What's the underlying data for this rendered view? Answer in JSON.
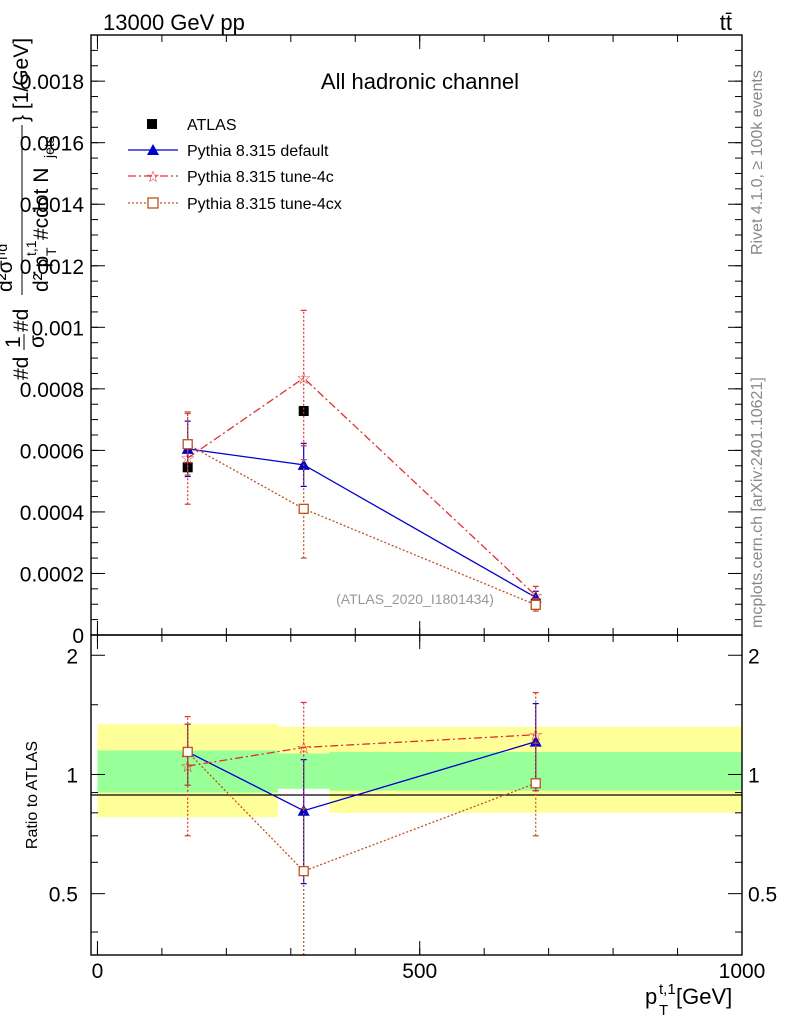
{
  "header": {
    "energy_label": "13000 GeV pp",
    "process": "tt̄"
  },
  "side_labels": {
    "rivet": "Rivet 4.1.0, ≥ 100k events",
    "source": "mcplots.cern.ch [arXiv:2401.10621]"
  },
  "colors": {
    "data": "#000000",
    "default": "#0000cc",
    "tune4c": "#e03030",
    "tune4cx": "#c05020",
    "band_inner": "#99ff99",
    "band_outer": "#ffff99"
  },
  "chart_data": [
    {
      "type": "line",
      "title": "All hadronic channel",
      "analysis_tag": "(ATLAS_2020_I1801434)",
      "xlabel": "p_T^{t,1} [GeV]",
      "xlabel_main": "p",
      "xlabel_sub": "T",
      "xlabel_sup": "t,1",
      "xlabel_unit": " [GeV]",
      "ylabel": "#d\\frac{1}{\\sigma}#d\\frac{d^{2}\\sigma^{fid}}{d^{2} p_{T}^{t,1} #cdot N_{jets}} [1/GeV]",
      "ylabel_a": "#d",
      "ylabel_b": "1",
      "ylabel_c": "σ",
      "ylabel_d": "#d",
      "ylabel_e": "d²σᶠⁱᵈ",
      "ylabel_f": "d² p",
      "ylabel_g": "T",
      "ylabel_h": "t,1",
      "ylabel_i": " #cdot N",
      "ylabel_j": "jets",
      "ylabel_k": "} [1/GeV]",
      "xlim": [
        -10,
        1000
      ],
      "ylim": [
        0,
        0.00195
      ],
      "yticks": [
        0,
        0.0002,
        0.0004,
        0.0006,
        0.0008,
        0.001,
        0.0012,
        0.0014,
        0.0016,
        0.0018
      ],
      "ytick_labels": [
        "0",
        "0.0002",
        "0.0004",
        "0.0006",
        "0.0008",
        "0.001",
        "0.0012",
        "0.0014",
        "0.0016",
        "0.0018"
      ],
      "legend": [
        "ATLAS",
        "Pythia 8.315 default",
        "Pythia 8.315 tune-4c",
        "Pythia 8.315 tune-4cx"
      ],
      "legend_position": "top-left",
      "series": [
        {
          "name": "ATLAS",
          "style": "data",
          "x": [
            140,
            320,
            680
          ],
          "y": [
            0.000545,
            0.000728,
            0.000102
          ],
          "xerr": [
            [
              0,
              0
            ],
            [
              0,
              0
            ],
            [
              0,
              0
            ]
          ],
          "yerr": [
            0,
            0,
            0
          ]
        },
        {
          "name": "Pythia 8.315 default",
          "style": "default",
          "x": [
            140,
            320,
            680
          ],
          "y": [
            0.000605,
            0.000553,
            0.000122
          ],
          "yerr": [
            9e-05,
            7e-05,
            2e-05
          ]
        },
        {
          "name": "Pythia 8.315 tune-4c",
          "style": "tune4c",
          "x": [
            140,
            320,
            680
          ],
          "y": [
            0.000575,
            0.000835,
            0.000128
          ],
          "yerr": [
            0.00015,
            0.00022,
            3e-05
          ]
        },
        {
          "name": "Pythia 8.315 tune-4cx",
          "style": "tune4cx",
          "x": [
            140,
            320,
            680
          ],
          "y": [
            0.00062,
            0.00041,
            9.8e-05
          ],
          "yerr": [
            0.0001,
            0.00016,
            2e-05
          ]
        }
      ]
    },
    {
      "type": "line",
      "ylabel": "Ratio to ATLAS",
      "xlim": [
        -10,
        1000
      ],
      "ylim": [
        0.35,
        2.25
      ],
      "yticks": [
        0.5,
        1,
        2
      ],
      "ytick_labels": [
        "0.5",
        "1",
        "2"
      ],
      "xticks": [
        0,
        500,
        1000
      ],
      "xtick_labels": [
        "0",
        "500",
        "1000"
      ],
      "bands": [
        {
          "x": [
            0,
            280
          ],
          "inner": [
            0.9,
            1.15
          ],
          "outer": [
            0.78,
            1.34
          ]
        },
        {
          "x": [
            280,
            360
          ],
          "inner": [
            0.92,
            1.13
          ],
          "outer": [
            0.92,
            1.32
          ]
        },
        {
          "x": [
            360,
            1000
          ],
          "inner": [
            0.91,
            1.14
          ],
          "outer": [
            0.8,
            1.32
          ]
        }
      ],
      "series": [
        {
          "name": "Pythia 8.315 default",
          "style": "default",
          "x": [
            140,
            320,
            680
          ],
          "y": [
            1.14,
            0.81,
            1.21
          ],
          "yerr": [
            0.2,
            0.28,
            0.3
          ]
        },
        {
          "name": "Pythia 8.315 tune-4c",
          "style": "tune4c",
          "x": [
            140,
            320,
            680
          ],
          "y": [
            1.05,
            1.17,
            1.26
          ],
          "yerr": [
            0.35,
            0.35,
            0.35
          ]
        },
        {
          "name": "Pythia 8.315 tune-4cx",
          "style": "tune4cx",
          "x": [
            140,
            320,
            680
          ],
          "y": [
            1.14,
            0.57,
            0.95
          ],
          "yerr": [
            0.2,
            0.25,
            0.25
          ]
        }
      ]
    }
  ]
}
